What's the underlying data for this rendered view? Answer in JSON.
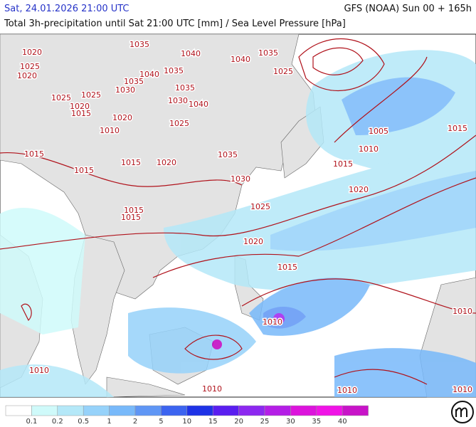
{
  "header": {
    "valid_time": "Sat, 24.01.2026 21:00 UTC",
    "model_run": "GFS (NOAA) Sun 00 + 165h",
    "title": "Total 3h-precipitation until Sat 21:00 UTC [mm] / Sea Level Pressure [hPa]"
  },
  "isobars": {
    "labels": [
      "1020",
      "1025",
      "1020",
      "1035",
      "1040",
      "1040",
      "1035",
      "1025",
      "1040",
      "1035",
      "1035",
      "1030",
      "1035",
      "1025",
      "1025",
      "1030",
      "1040",
      "1020",
      "1015",
      "1020",
      "1025",
      "1010",
      "1005",
      "1015",
      "1010",
      "1015",
      "1035",
      "1015",
      "1020",
      "1015",
      "1015",
      "1030",
      "1020",
      "1025",
      "1015",
      "1015",
      "1020",
      "1015",
      "1010",
      "1010",
      "1010",
      "1010",
      "1010",
      "1010"
    ]
  },
  "legend": {
    "labels": [
      "0.1",
      "0.2",
      "0.5",
      "1",
      "2",
      "5",
      "10",
      "15",
      "20",
      "25",
      "30",
      "35",
      "40"
    ],
    "colors": [
      "#ffffff",
      "#cffafa",
      "#b4e8f8",
      "#96d2fa",
      "#78b9fa",
      "#5f96f5",
      "#3c64f0",
      "#1e32e6",
      "#5a1ef0",
      "#8c28f0",
      "#b41ee6",
      "#dc14dc",
      "#f014e6",
      "#c814c8"
    ]
  }
}
